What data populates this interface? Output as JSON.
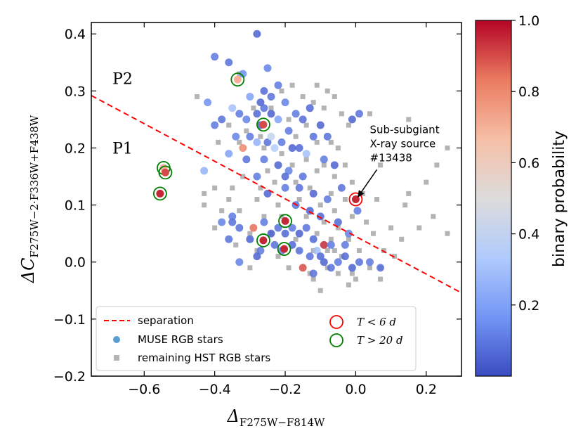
{
  "chart_data": {
    "type": "scatter",
    "xlabel": "Δ",
    "xlabel_sub": "F275W−F814W",
    "ylabel": "ΔC",
    "ylabel_sub": "F275W−2·F336W+F438W",
    "xlim": [
      -0.75,
      0.3
    ],
    "ylim": [
      -0.2,
      0.42
    ],
    "x_ticks": [
      -0.6,
      -0.4,
      -0.2,
      0.0,
      0.2
    ],
    "x_tick_labels": [
      "−0.6",
      "−0.4",
      "−0.2",
      "0.0",
      "0.2"
    ],
    "y_ticks": [
      -0.2,
      -0.1,
      0.0,
      0.1,
      0.2,
      0.3,
      0.4
    ],
    "y_tick_labels": [
      "−0.2",
      "−0.1",
      "0.0",
      "0.1",
      "0.2",
      "0.3",
      "0.4"
    ],
    "grid": false,
    "separation_line": {
      "x": [
        -0.75,
        0.3
      ],
      "y": [
        0.292,
        -0.054
      ]
    },
    "region_labels": [
      {
        "text": "P2",
        "x": -0.69,
        "y": 0.322
      },
      {
        "text": "P1",
        "x": -0.69,
        "y": 0.2
      }
    ],
    "annotation": {
      "lines": [
        "Sub-subgiant",
        "X-ray source",
        "#13438"
      ],
      "text_x": 0.04,
      "text_y": 0.226,
      "arrow_from": [
        0.06,
        0.162
      ],
      "arrow_to": [
        0.005,
        0.113
      ]
    },
    "colorbar": {
      "label": "binary probability",
      "range": [
        0.0,
        1.0
      ],
      "ticks": [
        0.2,
        0.4,
        0.6,
        0.8,
        1.0
      ],
      "tick_labels": [
        "0.2",
        "0.4",
        "0.6",
        "0.8",
        "1.0"
      ],
      "colors": [
        "#3b4cc0",
        "#7396f5",
        "#b0cbfc",
        "#dddcdc",
        "#f6bfa6",
        "#ea7b60",
        "#b40426"
      ]
    },
    "legend": {
      "position": "lower-left",
      "entries": [
        {
          "label": "separation",
          "kind": "line",
          "color": "#ff0000"
        },
        {
          "label": "MUSE RGB stars",
          "kind": "circle",
          "color": "#5a9fd1"
        },
        {
          "label": "remaining HST RGB stars",
          "kind": "square",
          "color": "#b4b4b4"
        },
        {
          "label": "T < 6 d",
          "kind": "ring",
          "color": "#ff0000"
        },
        {
          "label": "T > 20 d",
          "kind": "ring",
          "color": "#008000"
        }
      ]
    },
    "series": [
      {
        "name": "MUSE RGB stars",
        "points": [
          [
            -0.28,
            0.4
          ],
          [
            -0.4,
            0.36
          ],
          [
            -0.36,
            0.35
          ],
          [
            -0.32,
            0.33
          ],
          [
            -0.25,
            0.34
          ],
          [
            -0.26,
            0.3
          ],
          [
            -0.22,
            0.31
          ],
          [
            -0.3,
            0.29
          ],
          [
            -0.27,
            0.28
          ],
          [
            -0.24,
            0.29
          ],
          [
            -0.2,
            0.28
          ],
          [
            -0.17,
            0.26
          ],
          [
            -0.13,
            0.27
          ],
          [
            -0.42,
            0.28
          ],
          [
            -0.38,
            0.25
          ],
          [
            -0.35,
            0.27
          ],
          [
            -0.33,
            0.26
          ],
          [
            -0.31,
            0.25
          ],
          [
            -0.28,
            0.26
          ],
          [
            -0.26,
            0.27
          ],
          [
            -0.24,
            0.26
          ],
          [
            -0.22,
            0.25
          ],
          [
            -0.19,
            0.23
          ],
          [
            -0.15,
            0.25
          ],
          [
            -0.1,
            0.24
          ],
          [
            -0.08,
            0.22
          ],
          [
            -0.34,
            0.22
          ],
          [
            -0.32,
            0.2
          ],
          [
            -0.3,
            0.22
          ],
          [
            -0.28,
            0.21
          ],
          [
            -0.25,
            0.21
          ],
          [
            -0.23,
            0.2
          ],
          [
            -0.21,
            0.21
          ],
          [
            -0.18,
            0.2
          ],
          [
            -0.16,
            0.2
          ],
          [
            -0.14,
            0.19
          ],
          [
            -0.12,
            0.22
          ],
          [
            -0.09,
            0.18
          ],
          [
            -0.06,
            0.17
          ],
          [
            -0.36,
            0.19
          ],
          [
            -0.31,
            0.18
          ],
          [
            -0.26,
            0.18
          ],
          [
            -0.22,
            0.17
          ],
          [
            -0.19,
            0.16
          ],
          [
            -0.15,
            0.15
          ],
          [
            -0.43,
            0.16
          ],
          [
            -0.28,
            0.15
          ],
          [
            -0.2,
            0.15
          ],
          [
            -0.16,
            0.13
          ],
          [
            -0.12,
            0.12
          ],
          [
            -0.08,
            0.11
          ],
          [
            -0.04,
            0.13
          ],
          [
            -0.25,
            0.12
          ],
          [
            -0.2,
            0.13
          ],
          [
            -0.17,
            0.1
          ],
          [
            -0.13,
            0.09
          ],
          [
            -0.1,
            0.08
          ],
          [
            -0.38,
            0.07
          ],
          [
            -0.35,
            0.08
          ],
          [
            -0.33,
            0.06
          ],
          [
            -0.29,
            0.06
          ],
          [
            -0.26,
            0.07
          ],
          [
            -0.24,
            0.05
          ],
          [
            -0.22,
            0.06
          ],
          [
            -0.2,
            0.05
          ],
          [
            -0.18,
            0.06
          ],
          [
            -0.16,
            0.05
          ],
          [
            -0.14,
            0.06
          ],
          [
            -0.12,
            0.04
          ],
          [
            -0.09,
            0.03
          ],
          [
            -0.07,
            0.03
          ],
          [
            -0.36,
            0.04
          ],
          [
            -0.3,
            0.04
          ],
          [
            -0.27,
            0.02
          ],
          [
            -0.23,
            0.03
          ],
          [
            -0.21,
            0.02
          ],
          [
            -0.18,
            0.03
          ],
          [
            -0.16,
            0.02
          ],
          [
            -0.13,
            0.01
          ],
          [
            -0.11,
            0.02
          ],
          [
            -0.09,
            0.0
          ],
          [
            -0.07,
            -0.01
          ],
          [
            -0.05,
            0.0
          ],
          [
            -0.03,
            0.01
          ],
          [
            -0.01,
            -0.01
          ],
          [
            0.01,
            0.0
          ],
          [
            0.04,
            0.0
          ],
          [
            -0.33,
            0.0
          ],
          [
            -0.28,
            0.01
          ],
          [
            -0.15,
            -0.01
          ],
          [
            -0.12,
            -0.02
          ],
          [
            -0.03,
            0.03
          ],
          [
            -0.01,
            0.25
          ],
          [
            0.01,
            0.26
          ],
          [
            -0.05,
            0.07
          ],
          [
            0.005,
            0.09
          ],
          [
            -0.02,
            0.05
          ],
          [
            0.07,
            -0.01
          ],
          [
            -0.27,
            0.24
          ],
          [
            -0.24,
            0.22
          ],
          [
            -0.1,
            0.01
          ],
          [
            -0.4,
            0.24
          ],
          [
            -0.35,
            0.07
          ]
        ],
        "probabilities": [
          0.05,
          0.1,
          0.08,
          0.15,
          0.12,
          0.07,
          0.1,
          0.2,
          0.05,
          0.08,
          0.12,
          0.1,
          0.06,
          0.15,
          0.08,
          0.3,
          0.1,
          0.12,
          0.06,
          0.08,
          0.05,
          0.2,
          0.1,
          0.07,
          0.05,
          0.08,
          0.12,
          0.8,
          0.1,
          0.25,
          0.08,
          0.35,
          0.1,
          0.05,
          0.06,
          0.3,
          0.08,
          0.1,
          0.05,
          0.2,
          0.08,
          0.1,
          0.05,
          0.12,
          0.08,
          0.25,
          0.1,
          0.06,
          0.08,
          0.05,
          0.1,
          0.08,
          0.05,
          0.1,
          0.08,
          0.05,
          0.06,
          0.12,
          0.1,
          0.08,
          0.85,
          0.1,
          0.05,
          0.08,
          0.06,
          0.1,
          0.05,
          0.08,
          0.06,
          0.95,
          0.1,
          0.08,
          0.05,
          0.1,
          0.08,
          0.12,
          0.06,
          0.1,
          0.08,
          0.3,
          0.05,
          0.08,
          0.1,
          0.06,
          0.05,
          0.08,
          0.1,
          0.12,
          0.05,
          0.9,
          0.08,
          0.1,
          0.05,
          0.08,
          0.06,
          0.1,
          0.12,
          0.08,
          0.05,
          0.4,
          0.06,
          0.1,
          0.08
        ]
      },
      {
        "name": "remaining HST RGB stars",
        "points": [
          [
            -0.33,
            0.33
          ],
          [
            -0.18,
            0.31
          ],
          [
            -0.11,
            0.31
          ],
          [
            -0.08,
            0.3
          ],
          [
            -0.45,
            0.29
          ],
          [
            -0.21,
            0.3
          ],
          [
            -0.12,
            0.28
          ],
          [
            -0.06,
            0.29
          ],
          [
            -0.15,
            0.29
          ],
          [
            -0.09,
            0.27
          ],
          [
            -0.24,
            0.27
          ],
          [
            -0.29,
            0.27
          ],
          [
            -0.04,
            0.26
          ],
          [
            0.04,
            0.26
          ],
          [
            -0.19,
            0.25
          ],
          [
            -0.14,
            0.24
          ],
          [
            -0.02,
            0.24
          ],
          [
            -0.36,
            0.24
          ],
          [
            -0.31,
            0.23
          ],
          [
            -0.27,
            0.22
          ],
          [
            -0.17,
            0.22
          ],
          [
            -0.11,
            0.21
          ],
          [
            -0.07,
            0.21
          ],
          [
            -0.05,
            0.2
          ],
          [
            -0.39,
            0.21
          ],
          [
            -0.33,
            0.21
          ],
          [
            -0.26,
            0.2
          ],
          [
            -0.21,
            0.19
          ],
          [
            -0.14,
            0.18
          ],
          [
            -0.09,
            0.17
          ],
          [
            -0.03,
            0.17
          ],
          [
            -0.25,
            0.16
          ],
          [
            -0.18,
            0.17
          ],
          [
            -0.11,
            0.16
          ],
          [
            -0.06,
            0.15
          ],
          [
            -0.01,
            0.14
          ],
          [
            -0.32,
            0.15
          ],
          [
            -0.4,
            0.13
          ],
          [
            -0.23,
            0.14
          ],
          [
            -0.17,
            0.14
          ],
          [
            -0.13,
            0.13
          ],
          [
            -0.07,
            0.12
          ],
          [
            -0.03,
            0.11
          ],
          [
            0.02,
            0.12
          ],
          [
            0.06,
            0.11
          ],
          [
            -0.43,
            0.12
          ],
          [
            -0.36,
            0.11
          ],
          [
            -0.28,
            0.11
          ],
          [
            -0.22,
            0.1
          ],
          [
            -0.16,
            0.11
          ],
          [
            -0.1,
            0.1
          ],
          [
            -0.06,
            0.09
          ],
          [
            -0.01,
            0.08
          ],
          [
            0.03,
            0.07
          ],
          [
            -0.43,
            0.1
          ],
          [
            -0.38,
            0.09
          ],
          [
            -0.33,
            0.09
          ],
          [
            -0.26,
            0.08
          ],
          [
            -0.21,
            0.08
          ],
          [
            -0.14,
            0.08
          ],
          [
            -0.09,
            0.07
          ],
          [
            -0.05,
            0.06
          ],
          [
            0.05,
            0.05
          ],
          [
            0.1,
            0.06
          ],
          [
            -0.4,
            0.06
          ],
          [
            -0.3,
            0.05
          ],
          [
            -0.24,
            0.05
          ],
          [
            -0.17,
            0.04
          ],
          [
            -0.11,
            0.05
          ],
          [
            -0.07,
            0.04
          ],
          [
            -0.02,
            0.04
          ],
          [
            0.08,
            0.02
          ],
          [
            0.13,
            0.04
          ],
          [
            -0.34,
            0.03
          ],
          [
            -0.28,
            0.02
          ],
          [
            -0.22,
            0.01
          ],
          [
            -0.16,
            0.02
          ],
          [
            -0.12,
            0.02
          ],
          [
            -0.08,
            0.02
          ],
          [
            -0.04,
            0.01
          ],
          [
            0.01,
            0.02
          ],
          [
            0.07,
            -0.01
          ],
          [
            0.11,
            0.01
          ],
          [
            -0.3,
            -0.01
          ],
          [
            -0.19,
            -0.01
          ],
          [
            -0.13,
            -0.02
          ],
          [
            -0.08,
            -0.01
          ],
          [
            -0.05,
            -0.02
          ],
          [
            -0.01,
            -0.02
          ],
          [
            0.04,
            -0.01
          ],
          [
            -0.12,
            -0.03
          ],
          [
            -0.1,
            -0.05
          ],
          [
            0.0,
            -0.03
          ],
          [
            0.07,
            -0.03
          ],
          [
            -0.02,
            -0.04
          ],
          [
            0.26,
            0.2
          ],
          [
            0.15,
            0.25
          ],
          [
            0.2,
            0.14
          ],
          [
            0.14,
            0.1
          ],
          [
            0.22,
            0.08
          ],
          [
            0.18,
            0.06
          ],
          [
            0.15,
            0.12
          ],
          [
            0.07,
            0.17
          ],
          [
            0.26,
            0.05
          ],
          [
            0.23,
            0.17
          ],
          [
            -0.06,
            0.02
          ],
          [
            -0.27,
            0.13
          ],
          [
            -0.35,
            0.13
          ]
        ]
      }
    ],
    "rings": [
      {
        "x": -0.335,
        "y": 0.32,
        "period": "T > 20 d",
        "probability": 0.7
      },
      {
        "x": -0.262,
        "y": 0.241,
        "period": "T > 20 d",
        "probability": 0.9
      },
      {
        "x": -0.545,
        "y": 0.165,
        "period": "T > 20 d",
        "probability": 0.7
      },
      {
        "x": -0.54,
        "y": 0.157,
        "period": "T > 20 d",
        "probability": 0.9
      },
      {
        "x": -0.555,
        "y": 0.12,
        "period": "T > 20 d",
        "probability": 0.95
      },
      {
        "x": -0.2,
        "y": 0.072,
        "period": "T > 20 d",
        "probability": 0.95
      },
      {
        "x": -0.262,
        "y": 0.038,
        "period": "T > 20 d",
        "probability": 0.95
      },
      {
        "x": -0.203,
        "y": 0.023,
        "period": "T > 20 d",
        "probability": 0.95
      },
      {
        "x": 0.0,
        "y": 0.11,
        "period": "T < 6 d",
        "probability": 0.95
      }
    ]
  }
}
